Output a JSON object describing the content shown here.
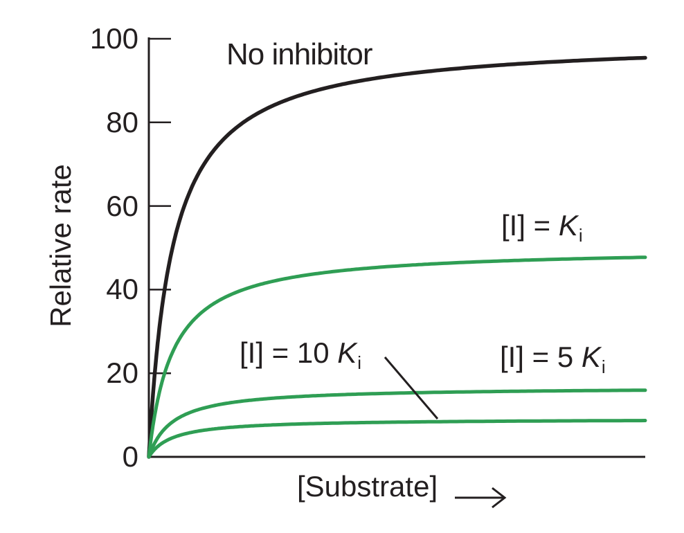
{
  "figure": {
    "background": "#ffffff",
    "axis_color": "#231f20",
    "text_color": "#231f20",
    "accent_green": "#2f9e54"
  },
  "axes": {
    "y_label": "Relative rate",
    "x_label": "[Substrate]"
  },
  "annotations": {
    "no_inhibitor": "No inhibitor",
    "ki": {
      "prefix": "[I] = ",
      "symbol": "K",
      "sub": "i"
    },
    "ki5": {
      "prefix": "[I] = 5 ",
      "symbol": "K",
      "sub": "i"
    },
    "ki10": {
      "prefix": "[I] = 10 ",
      "symbol": "K",
      "sub": "i"
    }
  },
  "chart_data": {
    "type": "line",
    "model": "michaelis_menten",
    "xlabel": "[Substrate]",
    "ylabel": "Relative rate",
    "ylim": [
      0,
      100
    ],
    "y_ticks": [
      0,
      20,
      40,
      60,
      80,
      100
    ],
    "x_axis": {
      "min": 0,
      "max": 21,
      "unit": "multiples of Km (unlabeled axis)",
      "ticks": []
    },
    "grid": false,
    "legend": "inline curve annotations",
    "series": [
      {
        "id": "no-inhibitor",
        "name": "No inhibitor",
        "vmax": 100,
        "km": 1,
        "end_value": 95,
        "color": "#231f20",
        "stroke_width": 5.5
      },
      {
        "id": "ki",
        "name": "[I] = Ki",
        "vmax": 50,
        "km": 1,
        "end_value": 48,
        "color": "#2f9e54",
        "stroke_width": 5
      },
      {
        "id": "5ki",
        "name": "[I] = 5 Ki",
        "vmax": 16.7,
        "km": 1,
        "end_value": 16,
        "color": "#2f9e54",
        "stroke_width": 5
      },
      {
        "id": "10ki",
        "name": "[I] = 10 Ki",
        "vmax": 9.1,
        "km": 1,
        "end_value": 9,
        "color": "#2f9e54",
        "stroke_width": 5
      }
    ]
  }
}
